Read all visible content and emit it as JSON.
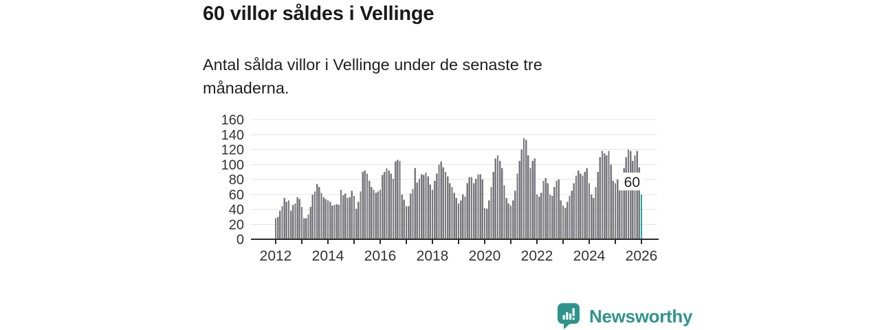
{
  "header": {
    "title": "60 villor såldes i Vellinge",
    "subtitle": "Antal sålda villor i Vellinge under de senaste tre månaderna."
  },
  "chart_data": {
    "type": "bar",
    "title": "60 villor såldes i Vellinge",
    "subtitle": "Antal sålda villor i Vellinge under de senaste tre månaderna.",
    "ylabel": "",
    "xlabel": "",
    "ylim": [
      0,
      160
    ],
    "y_ticks": [
      0,
      20,
      40,
      60,
      80,
      100,
      120,
      140,
      160
    ],
    "x_start_year": 2012,
    "x_end_year": 2026,
    "x_tick_labels": [
      "2012",
      "2014",
      "2016",
      "2018",
      "2020",
      "2022",
      "2024",
      "2026"
    ],
    "grid": true,
    "legend": "none",
    "bar_color": "#77777c",
    "grid_color": "#e4e4e4",
    "axis_color": "#2b2b2b",
    "tick_label_color": "#333333",
    "series": [
      {
        "name": "Antal sålda villor (rullande tre månader)",
        "start": "2012-01",
        "frequency": "monthly",
        "values": [
          28,
          30,
          38,
          44,
          55,
          50,
          52,
          38,
          46,
          48,
          56,
          54,
          43,
          28,
          28,
          33,
          43,
          60,
          64,
          74,
          70,
          62,
          56,
          54,
          52,
          50,
          45,
          46,
          47,
          46,
          66,
          59,
          61,
          55,
          56,
          65,
          58,
          41,
          50,
          64,
          90,
          92,
          88,
          78,
          70,
          66,
          62,
          64,
          66,
          86,
          90,
          95,
          92,
          88,
          81,
          104,
          106,
          105,
          60,
          53,
          44,
          44,
          61,
          67,
          95,
          76,
          81,
          87,
          86,
          89,
          84,
          73,
          66,
          78,
          88,
          100,
          104,
          96,
          90,
          84,
          75,
          70,
          62,
          55,
          48,
          52,
          60,
          57,
          75,
          83,
          83,
          75,
          81,
          87,
          87,
          80,
          42,
          41,
          52,
          70,
          90,
          108,
          112,
          105,
          95,
          72,
          55,
          48,
          45,
          52,
          65,
          88,
          105,
          120,
          135,
          133,
          112,
          95,
          105,
          108,
          60,
          57,
          62,
          78,
          82,
          75,
          60,
          58,
          70,
          78,
          80,
          52,
          45,
          42,
          50,
          58,
          65,
          75,
          85,
          92,
          88,
          85,
          90,
          95,
          75,
          60,
          55,
          70,
          90,
          110,
          118,
          115,
          112,
          118,
          100,
          78,
          75,
          80,
          72,
          78,
          95,
          110,
          120,
          118,
          105,
          112,
          118,
          96,
          60
        ]
      }
    ],
    "highlight": {
      "index": 168,
      "value": 60,
      "label": "60",
      "color": "#1bada2",
      "label_color": "#1f1f1f"
    }
  },
  "footer": {
    "brand": "Newsworthy",
    "brand_color": "#2e948c",
    "logo_icon": "newsworthy-chart-bubble-icon"
  }
}
